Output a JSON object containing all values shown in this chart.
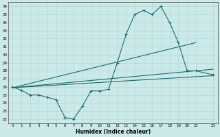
{
  "xlabel": "Humidex (Indice chaleur)",
  "xlim": [
    -0.5,
    23.5
  ],
  "ylim": [
    21.5,
    36.5
  ],
  "xticks": [
    0,
    1,
    2,
    3,
    4,
    5,
    6,
    7,
    8,
    9,
    10,
    11,
    12,
    13,
    14,
    15,
    16,
    17,
    18,
    19,
    20,
    21,
    23
  ],
  "yticks": [
    22,
    23,
    24,
    25,
    26,
    27,
    28,
    29,
    30,
    31,
    32,
    33,
    34,
    35,
    36
  ],
  "bg_color": "#cce9e9",
  "grid_color": "#b0d8d8",
  "line_color": "#1a6b6b",
  "jagged_x": [
    0,
    1,
    2,
    3,
    4,
    5,
    6,
    7,
    8,
    9,
    10,
    11,
    12,
    13,
    14,
    15,
    16,
    17,
    18,
    19,
    20,
    21,
    23
  ],
  "jagged_y": [
    26.0,
    25.6,
    25.0,
    25.0,
    24.7,
    24.4,
    22.2,
    22.0,
    23.6,
    25.5,
    25.5,
    25.7,
    29.0,
    32.5,
    35.0,
    35.5,
    35.0,
    36.0,
    34.0,
    31.5,
    28.0,
    28.0,
    27.5
  ],
  "trend1_x": [
    0,
    23
  ],
  "trend1_y": [
    25.9,
    27.4
  ],
  "trend2_x": [
    0,
    23
  ],
  "trend2_y": [
    25.9,
    28.2
  ],
  "trend3_x": [
    0,
    21
  ],
  "trend3_y": [
    25.9,
    31.5
  ]
}
